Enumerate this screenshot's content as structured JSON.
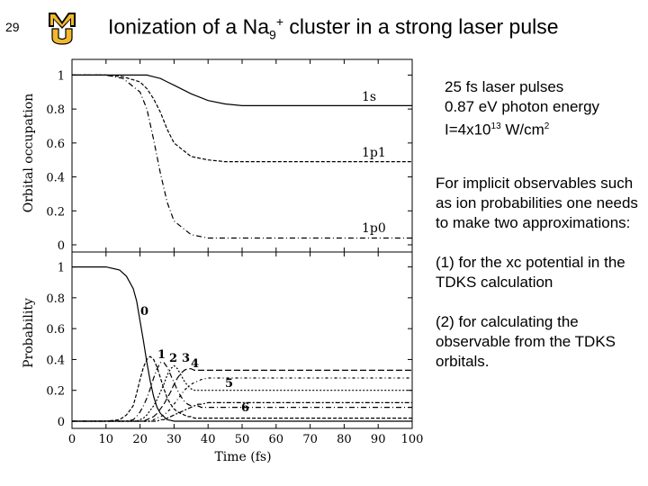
{
  "slide": {
    "number": "29",
    "title": {
      "part1": "Ionization of a Na",
      "sub": "9",
      "sup": "+",
      "part2": " cluster in a strong laser pulse"
    },
    "logo_colors": {
      "gold": "#f1b82d",
      "black": "#000000"
    }
  },
  "info": {
    "line1": "25 fs laser pulses",
    "line2": "0.87 eV photon energy",
    "line3_pre": "I=4x10",
    "line3_exp": "13",
    "line3_mid": " W/cm",
    "line3_exp2": "2"
  },
  "notes": {
    "p1": "For implicit observables such as ion probabilities one needs to make two approximations:",
    "p2": "(1)  for the xc potential in the TDKS calculation",
    "p3": "(2) for calculating the observable from the TDKS orbitals."
  },
  "chart_data": [
    {
      "type": "line",
      "ylabel": "Orbital occupation",
      "xlim": [
        0,
        100
      ],
      "ylim": [
        0,
        1.05
      ],
      "yticks": [
        "0",
        "0.2",
        "0.4",
        "0.6",
        "0.8",
        "1"
      ],
      "x": [
        0,
        10,
        15,
        20,
        22,
        24,
        26,
        28,
        30,
        35,
        40,
        45,
        50,
        60,
        70,
        80,
        90,
        100
      ],
      "series": [
        {
          "name": "1s",
          "values": [
            1.0,
            1.0,
            1.0,
            1.0,
            1.0,
            0.99,
            0.98,
            0.96,
            0.94,
            0.89,
            0.85,
            0.83,
            0.82,
            0.82,
            0.82,
            0.82,
            0.82,
            0.82
          ]
        },
        {
          "name": "1p1",
          "values": [
            1.0,
            1.0,
            0.99,
            0.96,
            0.92,
            0.86,
            0.78,
            0.68,
            0.6,
            0.52,
            0.5,
            0.49,
            0.49,
            0.49,
            0.49,
            0.49,
            0.49,
            0.49
          ]
        },
        {
          "name": "1p0",
          "values": [
            1.0,
            1.0,
            0.98,
            0.9,
            0.8,
            0.62,
            0.42,
            0.25,
            0.14,
            0.06,
            0.04,
            0.04,
            0.04,
            0.04,
            0.04,
            0.04,
            0.04,
            0.04
          ]
        }
      ],
      "labels": [
        "1s",
        "1p1",
        "1p0"
      ]
    },
    {
      "type": "line",
      "xlabel": "Time (fs)",
      "ylabel": "Probability",
      "xlim": [
        0,
        100
      ],
      "ylim": [
        0,
        1.05
      ],
      "xticks": [
        "0",
        "10",
        "20",
        "30",
        "40",
        "50",
        "60",
        "70",
        "80",
        "90",
        "100"
      ],
      "yticks": [
        "0",
        "0.2",
        "0.4",
        "0.6",
        "0.8",
        "1"
      ],
      "x": [
        0,
        5,
        10,
        14,
        16,
        18,
        19,
        20,
        21,
        22,
        23,
        24,
        25,
        26,
        27,
        28,
        29,
        30,
        31,
        32,
        33,
        34,
        35,
        36,
        37,
        38,
        40,
        42,
        45,
        50,
        60,
        70,
        80,
        90,
        100
      ],
      "series": [
        {
          "name": "0",
          "values": [
            1.0,
            1.0,
            1.0,
            0.98,
            0.94,
            0.86,
            0.78,
            0.65,
            0.52,
            0.38,
            0.26,
            0.16,
            0.09,
            0.05,
            0.03,
            0.01,
            0.005,
            0.0,
            0.0,
            0.0,
            0.0,
            0.0,
            0.0,
            0.0,
            0.0,
            0.0,
            0.0,
            0.0,
            0.0,
            0.0,
            0.0,
            0.0,
            0.0,
            0.0,
            0.0
          ]
        },
        {
          "name": "1",
          "values": [
            0,
            0,
            0,
            0.01,
            0.04,
            0.1,
            0.18,
            0.27,
            0.35,
            0.4,
            0.42,
            0.4,
            0.35,
            0.28,
            0.21,
            0.15,
            0.11,
            0.08,
            0.06,
            0.05,
            0.04,
            0.03,
            0.03,
            0.02,
            0.02,
            0.02,
            0.02,
            0.02,
            0.02,
            0.02,
            0.02,
            0.02,
            0.02,
            0.02,
            0.02
          ]
        },
        {
          "name": "2",
          "values": [
            0,
            0,
            0,
            0,
            0.0,
            0.01,
            0.03,
            0.06,
            0.1,
            0.15,
            0.21,
            0.28,
            0.34,
            0.38,
            0.38,
            0.35,
            0.3,
            0.25,
            0.2,
            0.16,
            0.13,
            0.11,
            0.1,
            0.1,
            0.1,
            0.09,
            0.09,
            0.09,
            0.09,
            0.09,
            0.09,
            0.09,
            0.09,
            0.09,
            0.09
          ]
        },
        {
          "name": "3",
          "values": [
            0,
            0,
            0,
            0,
            0,
            0,
            0.0,
            0.01,
            0.02,
            0.04,
            0.07,
            0.1,
            0.14,
            0.19,
            0.24,
            0.3,
            0.34,
            0.36,
            0.34,
            0.3,
            0.26,
            0.23,
            0.21,
            0.2,
            0.2,
            0.2,
            0.2,
            0.2,
            0.2,
            0.2,
            0.2,
            0.2,
            0.2,
            0.2,
            0.2
          ]
        },
        {
          "name": "4",
          "values": [
            0,
            0,
            0,
            0,
            0,
            0,
            0,
            0,
            0,
            0.01,
            0.02,
            0.03,
            0.05,
            0.08,
            0.11,
            0.15,
            0.19,
            0.24,
            0.28,
            0.31,
            0.33,
            0.34,
            0.34,
            0.33,
            0.33,
            0.33,
            0.33,
            0.33,
            0.33,
            0.33,
            0.33,
            0.33,
            0.33,
            0.33,
            0.33
          ]
        },
        {
          "name": "5",
          "values": [
            0,
            0,
            0,
            0,
            0,
            0,
            0,
            0,
            0,
            0,
            0,
            0.01,
            0.02,
            0.03,
            0.04,
            0.06,
            0.08,
            0.11,
            0.14,
            0.17,
            0.2,
            0.22,
            0.24,
            0.25,
            0.26,
            0.27,
            0.28,
            0.28,
            0.28,
            0.28,
            0.28,
            0.28,
            0.28,
            0.28,
            0.28
          ]
        },
        {
          "name": "6",
          "values": [
            0,
            0,
            0,
            0,
            0,
            0,
            0,
            0,
            0,
            0,
            0,
            0,
            0,
            0.01,
            0.01,
            0.02,
            0.03,
            0.04,
            0.05,
            0.06,
            0.07,
            0.08,
            0.09,
            0.1,
            0.11,
            0.11,
            0.12,
            0.12,
            0.12,
            0.12,
            0.12,
            0.12,
            0.12,
            0.12,
            0.12
          ]
        }
      ],
      "labels": [
        "0",
        "1",
        "2",
        "3",
        "4",
        "5",
        "6"
      ]
    }
  ]
}
